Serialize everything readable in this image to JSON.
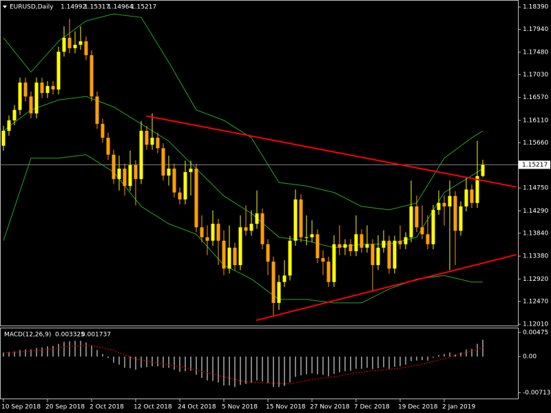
{
  "chart_data": {
    "type": "candlestick",
    "title": "EURUSD,Daily",
    "categories": [
      "10 Sep 2018",
      null,
      null,
      null,
      null,
      null,
      null,
      null,
      "20 Sep 2018",
      null,
      null,
      null,
      null,
      null,
      null,
      null,
      "2 Oct 2018",
      null,
      null,
      null,
      null,
      null,
      null,
      null,
      "12 Oct 2018",
      null,
      null,
      null,
      null,
      null,
      null,
      null,
      "24 Oct 2018",
      null,
      null,
      null,
      null,
      null,
      null,
      null,
      "5 Nov 2018",
      null,
      null,
      null,
      null,
      null,
      null,
      null,
      "15 Nov 2018",
      null,
      null,
      null,
      null,
      null,
      null,
      null,
      "27 Nov 2018",
      null,
      null,
      null,
      null,
      null,
      null,
      null,
      "7 Dec 2018",
      null,
      null,
      null,
      null,
      null,
      null,
      null,
      "19 Dec 2018",
      null,
      null,
      null,
      null,
      null,
      null,
      null,
      "2 Jan 2019",
      null,
      null,
      null,
      null,
      null,
      null,
      null
    ],
    "open": [
      1.156,
      1.159,
      1.1611,
      1.1632,
      1.1687,
      1.1659,
      1.1625,
      1.1687,
      1.1666,
      1.168,
      1.1673,
      1.1749,
      1.1777,
      1.1756,
      1.1763,
      1.177,
      1.1742,
      1.1659,
      1.1604,
      1.1576,
      1.1542,
      1.1493,
      1.1514,
      1.1479,
      1.1521,
      1.1493,
      1.159,
      1.1562,
      1.1576,
      1.1555,
      1.15,
      1.1514,
      1.1466,
      1.1452,
      1.1507,
      1.1514,
      1.1396,
      1.1376,
      1.1369,
      1.1403,
      1.1369,
      1.1313,
      1.1355,
      1.132,
      1.1396,
      1.1389,
      1.1403,
      1.1424,
      1.1362,
      1.1327,
      1.1244,
      1.1286,
      1.1299,
      1.1369,
      1.1452,
      1.1376,
      1.1376,
      1.1382,
      1.1334,
      1.1327,
      1.1286,
      1.1362,
      1.1355,
      1.1362,
      1.1348,
      1.1382,
      1.1355,
      1.1362,
      1.132,
      1.1355,
      1.1369,
      1.1313,
      1.1369,
      1.1362,
      1.1376,
      1.1438,
      1.1396,
      1.1382,
      1.1362,
      1.1431,
      1.1445,
      1.1438,
      1.1459,
      1.1389,
      1.1438,
      1.1472,
      1.1445,
      1.14992
    ],
    "high": [
      1.16,
      1.1621,
      1.1642,
      1.1697,
      1.1697,
      1.1669,
      1.1697,
      1.1697,
      1.169,
      1.169,
      1.1759,
      1.18,
      1.1815,
      1.179,
      1.18,
      1.178,
      1.1752,
      1.1669,
      1.1614,
      1.1586,
      1.1552,
      1.154,
      1.1524,
      1.155,
      1.1531,
      1.161,
      1.16,
      1.1625,
      1.1586,
      1.1565,
      1.154,
      1.1524,
      1.1476,
      1.153,
      1.153,
      1.1524,
      1.142,
      1.14,
      1.143,
      1.1413,
      1.139,
      1.14,
      1.1365,
      1.142,
      1.144,
      1.143,
      1.147,
      1.1434,
      1.1372,
      1.1337,
      1.13,
      1.133,
      1.1379,
      1.1472,
      1.1462,
      1.142,
      1.141,
      1.1392,
      1.135,
      1.1337,
      1.138,
      1.14,
      1.1372,
      1.1372,
      1.142,
      1.1392,
      1.14,
      1.1372,
      1.138,
      1.139,
      1.1379,
      1.1379,
      1.14,
      1.1386,
      1.149,
      1.146,
      1.144,
      1.142,
      1.1441,
      1.147,
      1.146,
      1.149,
      1.1469,
      1.1448,
      1.1495,
      1.1482,
      1.157,
      1.15317
    ],
    "low": [
      1.155,
      1.158,
      1.1601,
      1.1622,
      1.1649,
      1.1615,
      1.1615,
      1.1656,
      1.1656,
      1.1663,
      1.1663,
      1.1739,
      1.1746,
      1.1746,
      1.1753,
      1.1732,
      1.1649,
      1.1594,
      1.1566,
      1.1532,
      1.1483,
      1.147,
      1.146,
      1.1469,
      1.144,
      1.1483,
      1.1552,
      1.1552,
      1.1545,
      1.149,
      1.148,
      1.1456,
      1.1442,
      1.1442,
      1.146,
      1.1386,
      1.1366,
      1.134,
      1.1359,
      1.132,
      1.13,
      1.1303,
      1.131,
      1.131,
      1.1379,
      1.1379,
      1.1393,
      1.1352,
      1.13,
      1.1216,
      1.123,
      1.1276,
      1.1289,
      1.1359,
      1.1366,
      1.136,
      1.1366,
      1.1324,
      1.13,
      1.1276,
      1.1276,
      1.134,
      1.134,
      1.1338,
      1.1338,
      1.1345,
      1.1345,
      1.1269,
      1.131,
      1.1345,
      1.1303,
      1.1303,
      1.1352,
      1.1352,
      1.1366,
      1.1386,
      1.1372,
      1.1352,
      1.1352,
      1.1421,
      1.14,
      1.131,
      1.132,
      1.1379,
      1.1428,
      1.1435,
      1.1435,
      1.14964
    ],
    "close": [
      1.159,
      1.1611,
      1.1632,
      1.1687,
      1.1659,
      1.1625,
      1.1687,
      1.1666,
      1.168,
      1.1673,
      1.1749,
      1.1777,
      1.1756,
      1.1763,
      1.177,
      1.1742,
      1.1659,
      1.1604,
      1.1576,
      1.1542,
      1.1493,
      1.1514,
      1.1479,
      1.1521,
      1.1493,
      1.159,
      1.1562,
      1.1576,
      1.1555,
      1.15,
      1.1514,
      1.1466,
      1.1452,
      1.1507,
      1.1514,
      1.1396,
      1.1376,
      1.1369,
      1.1403,
      1.1369,
      1.1313,
      1.1355,
      1.132,
      1.1396,
      1.1389,
      1.1403,
      1.1424,
      1.1362,
      1.1327,
      1.1244,
      1.1286,
      1.1299,
      1.1369,
      1.1452,
      1.1376,
      1.1376,
      1.1382,
      1.1334,
      1.1327,
      1.1286,
      1.1362,
      1.1355,
      1.1362,
      1.1348,
      1.1382,
      1.1355,
      1.1362,
      1.132,
      1.1355,
      1.1369,
      1.1313,
      1.1369,
      1.1362,
      1.1376,
      1.1438,
      1.1396,
      1.1382,
      1.1362,
      1.1431,
      1.1445,
      1.1438,
      1.1459,
      1.1389,
      1.1438,
      1.1472,
      1.1445,
      1.1499,
      1.15217
    ],
    "bull_color": "#ffff00",
    "bear_color": "#ff9f00",
    "ylim": [
      1.1197,
      1.1853
    ],
    "yticks": [
      {
        "value": 1.1839,
        "label": "1.18390"
      },
      {
        "value": 1.1794,
        "label": "1.17940"
      },
      {
        "value": 1.1748,
        "label": "1.17480"
      },
      {
        "value": 1.1703,
        "label": "1.17030"
      },
      {
        "value": 1.1657,
        "label": "1.16570"
      },
      {
        "value": 1.1611,
        "label": "1.16110"
      },
      {
        "value": 1.1566,
        "label": "1.15660"
      },
      {
        "value": 1.1475,
        "label": "1.14750"
      },
      {
        "value": 1.1429,
        "label": "1.14290"
      },
      {
        "value": 1.1384,
        "label": "1.13840"
      },
      {
        "value": 1.1338,
        "label": "1.13380"
      },
      {
        "value": 1.1292,
        "label": "1.12920"
      },
      {
        "value": 1.1247,
        "label": "1.12470"
      },
      {
        "value": 1.1201,
        "label": "1.12010"
      }
    ],
    "bands": {
      "color": "#22aa22",
      "x": [
        0,
        5,
        10,
        15,
        20,
        25,
        30,
        35,
        40,
        45,
        50,
        55,
        60,
        65,
        70,
        75,
        80,
        85,
        87
      ],
      "upper": [
        1.1777,
        1.1708,
        1.177,
        1.1811,
        1.1825,
        1.1818,
        1.1728,
        1.1632,
        1.1611,
        1.1576,
        1.1486,
        1.1479,
        1.1466,
        1.1438,
        1.1431,
        1.1445,
        1.1535,
        1.1576,
        1.159
      ],
      "middle": [
        1.159,
        1.1632,
        1.1652,
        1.1659,
        1.1638,
        1.1604,
        1.1569,
        1.1514,
        1.1459,
        1.1424,
        1.1376,
        1.1369,
        1.1355,
        1.1362,
        1.1362,
        1.1376,
        1.1466,
        1.15,
        1.1514
      ],
      "lower": [
        1.1369,
        1.1535,
        1.1535,
        1.1542,
        1.1507,
        1.1438,
        1.1403,
        1.1382,
        1.132,
        1.1292,
        1.1251,
        1.1251,
        1.1244,
        1.1244,
        1.1272,
        1.1292,
        1.1299,
        1.1286,
        1.1286
      ]
    },
    "trendlines": {
      "color": "#ff0000",
      "lines": [
        {
          "x": [
            25.9,
            93.1
          ],
          "y": [
            1.162,
            1.1477
          ]
        },
        {
          "x": [
            45.9,
            93.1
          ],
          "y": [
            1.1209,
            1.1341
          ]
        }
      ]
    },
    "macd": {
      "label": "MACD(12,26,9)",
      "histogram_color": "#ffffff",
      "histogram": [
        0.0008,
        0.0009,
        0.001,
        0.0013,
        0.0014,
        0.0014,
        0.0017,
        0.0018,
        0.002,
        0.0021,
        0.0025,
        0.0029,
        0.003,
        0.0031,
        0.0031,
        0.0028,
        0.0021,
        0.0013,
        0.0005,
        -0.0003,
        -0.0012,
        -0.0016,
        -0.0022,
        -0.0023,
        -0.0026,
        -0.0022,
        -0.0021,
        -0.0019,
        -0.0019,
        -0.0022,
        -0.0022,
        -0.0026,
        -0.003,
        -0.0029,
        -0.0028,
        -0.0036,
        -0.0042,
        -0.0047,
        -0.0048,
        -0.0051,
        -0.0057,
        -0.0057,
        -0.006,
        -0.0056,
        -0.0054,
        -0.0051,
        -0.0047,
        -0.0049,
        -0.0052,
        -0.006,
        -0.006,
        -0.0058,
        -0.0051,
        -0.004,
        -0.0037,
        -0.0035,
        -0.0033,
        -0.0035,
        -0.0036,
        -0.0039,
        -0.0034,
        -0.0031,
        -0.0029,
        -0.0028,
        -0.0024,
        -0.0024,
        -0.0022,
        -0.0025,
        -0.0023,
        -0.0021,
        -0.0024,
        -0.002,
        -0.0019,
        -0.0016,
        -0.0009,
        -0.0008,
        -0.0007,
        -0.0008,
        -0.0002,
        0.0003,
        0.0005,
        0.0008,
        0.0004,
        0.0008,
        0.0014,
        0.0015,
        0.0025,
        0.003325
      ],
      "signal_color": "#ff0000",
      "signal_x": [
        0,
        4,
        8,
        12,
        16,
        20,
        24,
        28,
        32,
        36,
        40,
        44,
        48,
        52,
        56,
        60,
        64,
        68,
        72,
        76,
        80,
        84,
        87
      ],
      "signal": [
        0.0007,
        0.001,
        0.0014,
        0.002,
        0.0022,
        0.0012,
        -0.0005,
        -0.0013,
        -0.002,
        -0.0029,
        -0.004,
        -0.005,
        -0.0052,
        -0.0054,
        -0.0045,
        -0.004,
        -0.0032,
        -0.0027,
        -0.0023,
        -0.0015,
        -0.0004,
        0.0008,
        0.001737
      ],
      "ylim": [
        -0.00841,
        0.00556
      ],
      "yticks": [
        0.00475,
        {
          "value": 0,
          "label": "0.00"
        },
        -0.007134
      ]
    }
  }
}
